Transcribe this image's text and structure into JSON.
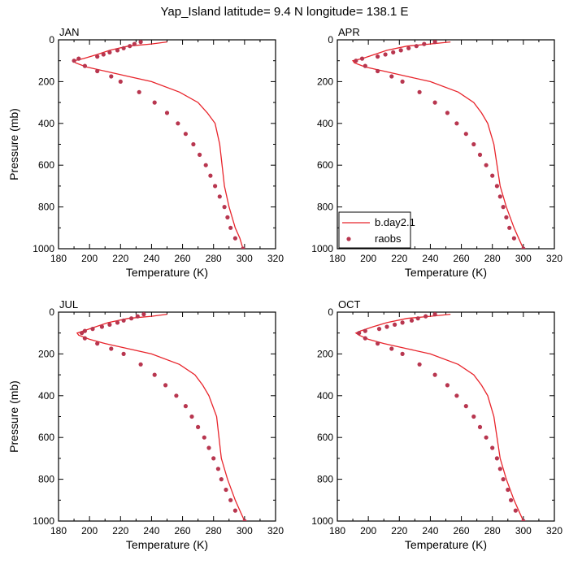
{
  "title": "Yap_Island  latitude= 9.4 N longitude= 138.1 E",
  "chart_data": {
    "type": "line",
    "xlabel": "Temperature (K)",
    "ylabel": "Pressure (mb)",
    "xlim": [
      180,
      320
    ],
    "ylim": [
      1000,
      0
    ],
    "y_inverted": true,
    "xticks": [
      180,
      200,
      220,
      240,
      260,
      280,
      300,
      320
    ],
    "yticks": [
      0,
      200,
      400,
      600,
      800,
      1000
    ],
    "legend": {
      "placement": "lower-left of APR panel",
      "entries": [
        {
          "label": "b.day2.1",
          "style": "line",
          "color": "#e8242b"
        },
        {
          "label": "raobs",
          "style": "marker",
          "color": "#b8364f"
        }
      ]
    },
    "panels": [
      {
        "title": "JAN",
        "model": [
          [
            250,
            10
          ],
          [
            240,
            20
          ],
          [
            225,
            30
          ],
          [
            213,
            50
          ],
          [
            205,
            70
          ],
          [
            196,
            90
          ],
          [
            190,
            100
          ],
          [
            191,
            110
          ],
          [
            198,
            130
          ],
          [
            210,
            150
          ],
          [
            225,
            175
          ],
          [
            240,
            200
          ],
          [
            258,
            250
          ],
          [
            270,
            300
          ],
          [
            276,
            350
          ],
          [
            281,
            400
          ],
          [
            284,
            500
          ],
          [
            287,
            700
          ],
          [
            290,
            800
          ],
          [
            294,
            900
          ],
          [
            297,
            950
          ],
          [
            299,
            1000
          ]
        ],
        "obs": [
          [
            233,
            10
          ],
          [
            229,
            20
          ],
          [
            226,
            30
          ],
          [
            222,
            40
          ],
          [
            218,
            50
          ],
          [
            213,
            60
          ],
          [
            209,
            70
          ],
          [
            205,
            80
          ],
          [
            193,
            90
          ],
          [
            190,
            100
          ],
          [
            197,
            125
          ],
          [
            205,
            150
          ],
          [
            214,
            175
          ],
          [
            220,
            200
          ],
          [
            232,
            250
          ],
          [
            242,
            300
          ],
          [
            250,
            350
          ],
          [
            257,
            400
          ],
          [
            262,
            450
          ],
          [
            267,
            500
          ],
          [
            271,
            550
          ],
          [
            275,
            600
          ],
          [
            278,
            650
          ],
          [
            281,
            700
          ],
          [
            284,
            750
          ],
          [
            287,
            800
          ],
          [
            289,
            850
          ],
          [
            291,
            900
          ],
          [
            294,
            950
          ],
          [
            299,
            1000
          ]
        ]
      },
      {
        "title": "APR",
        "model": [
          [
            253,
            10
          ],
          [
            240,
            20
          ],
          [
            225,
            30
          ],
          [
            212,
            50
          ],
          [
            204,
            70
          ],
          [
            196,
            90
          ],
          [
            190,
            100
          ],
          [
            191,
            110
          ],
          [
            198,
            130
          ],
          [
            210,
            150
          ],
          [
            225,
            175
          ],
          [
            240,
            200
          ],
          [
            258,
            250
          ],
          [
            268,
            300
          ],
          [
            273,
            350
          ],
          [
            277,
            400
          ],
          [
            281,
            500
          ],
          [
            285,
            700
          ],
          [
            289,
            800
          ],
          [
            294,
            900
          ],
          [
            297,
            950
          ],
          [
            300,
            1000
          ]
        ],
        "obs": [
          [
            243,
            10
          ],
          [
            236,
            20
          ],
          [
            231,
            30
          ],
          [
            226,
            40
          ],
          [
            221,
            50
          ],
          [
            216,
            60
          ],
          [
            211,
            70
          ],
          [
            206,
            80
          ],
          [
            196,
            90
          ],
          [
            192,
            100
          ],
          [
            198,
            125
          ],
          [
            206,
            150
          ],
          [
            215,
            175
          ],
          [
            222,
            200
          ],
          [
            233,
            250
          ],
          [
            243,
            300
          ],
          [
            251,
            350
          ],
          [
            257,
            400
          ],
          [
            263,
            450
          ],
          [
            268,
            500
          ],
          [
            272,
            550
          ],
          [
            276,
            600
          ],
          [
            280,
            650
          ],
          [
            283,
            700
          ],
          [
            285,
            750
          ],
          [
            287,
            800
          ],
          [
            289,
            850
          ],
          [
            291,
            900
          ],
          [
            294,
            950
          ],
          [
            300,
            1000
          ]
        ]
      },
      {
        "title": "JUL",
        "model": [
          [
            250,
            10
          ],
          [
            240,
            20
          ],
          [
            225,
            30
          ],
          [
            212,
            50
          ],
          [
            204,
            70
          ],
          [
            196,
            90
          ],
          [
            192,
            100
          ],
          [
            193,
            110
          ],
          [
            200,
            130
          ],
          [
            210,
            150
          ],
          [
            225,
            175
          ],
          [
            240,
            200
          ],
          [
            258,
            250
          ],
          [
            268,
            300
          ],
          [
            273,
            350
          ],
          [
            277,
            400
          ],
          [
            282,
            500
          ],
          [
            285,
            700
          ],
          [
            289,
            800
          ],
          [
            294,
            900
          ],
          [
            297,
            950
          ],
          [
            300,
            1000
          ]
        ],
        "obs": [
          [
            235,
            10
          ],
          [
            231,
            20
          ],
          [
            227,
            30
          ],
          [
            222,
            40
          ],
          [
            218,
            50
          ],
          [
            213,
            60
          ],
          [
            208,
            70
          ],
          [
            202,
            80
          ],
          [
            197,
            90
          ],
          [
            195,
            100
          ],
          [
            197,
            125
          ],
          [
            205,
            150
          ],
          [
            214,
            175
          ],
          [
            222,
            200
          ],
          [
            233,
            250
          ],
          [
            242,
            300
          ],
          [
            249,
            350
          ],
          [
            256,
            400
          ],
          [
            262,
            450
          ],
          [
            266,
            500
          ],
          [
            270,
            550
          ],
          [
            274,
            600
          ],
          [
            277,
            650
          ],
          [
            280,
            700
          ],
          [
            283,
            750
          ],
          [
            285,
            800
          ],
          [
            288,
            850
          ],
          [
            291,
            900
          ],
          [
            294,
            950
          ],
          [
            300,
            1000
          ]
        ]
      },
      {
        "title": "OCT",
        "model": [
          [
            253,
            10
          ],
          [
            240,
            20
          ],
          [
            225,
            30
          ],
          [
            212,
            50
          ],
          [
            203,
            70
          ],
          [
            195,
            90
          ],
          [
            192,
            100
          ],
          [
            194,
            110
          ],
          [
            200,
            130
          ],
          [
            210,
            150
          ],
          [
            225,
            175
          ],
          [
            240,
            200
          ],
          [
            258,
            250
          ],
          [
            268,
            300
          ],
          [
            273,
            350
          ],
          [
            277,
            400
          ],
          [
            281,
            500
          ],
          [
            285,
            700
          ],
          [
            289,
            800
          ],
          [
            294,
            900
          ],
          [
            297,
            950
          ],
          [
            300,
            1000
          ]
        ],
        "obs": [
          [
            243,
            10
          ],
          [
            237,
            20
          ],
          [
            232,
            30
          ],
          [
            228,
            40
          ],
          [
            222,
            50
          ],
          [
            217,
            60
          ],
          [
            212,
            70
          ],
          [
            207,
            80
          ],
          [
            198,
            90
          ],
          [
            194,
            100
          ],
          [
            198,
            125
          ],
          [
            206,
            150
          ],
          [
            215,
            175
          ],
          [
            222,
            200
          ],
          [
            233,
            250
          ],
          [
            243,
            300
          ],
          [
            251,
            350
          ],
          [
            257,
            400
          ],
          [
            263,
            450
          ],
          [
            268,
            500
          ],
          [
            272,
            550
          ],
          [
            276,
            600
          ],
          [
            280,
            650
          ],
          [
            283,
            700
          ],
          [
            285,
            750
          ],
          [
            287,
            800
          ],
          [
            290,
            850
          ],
          [
            292,
            900
          ],
          [
            295,
            950
          ],
          [
            300,
            1000
          ]
        ]
      }
    ]
  }
}
